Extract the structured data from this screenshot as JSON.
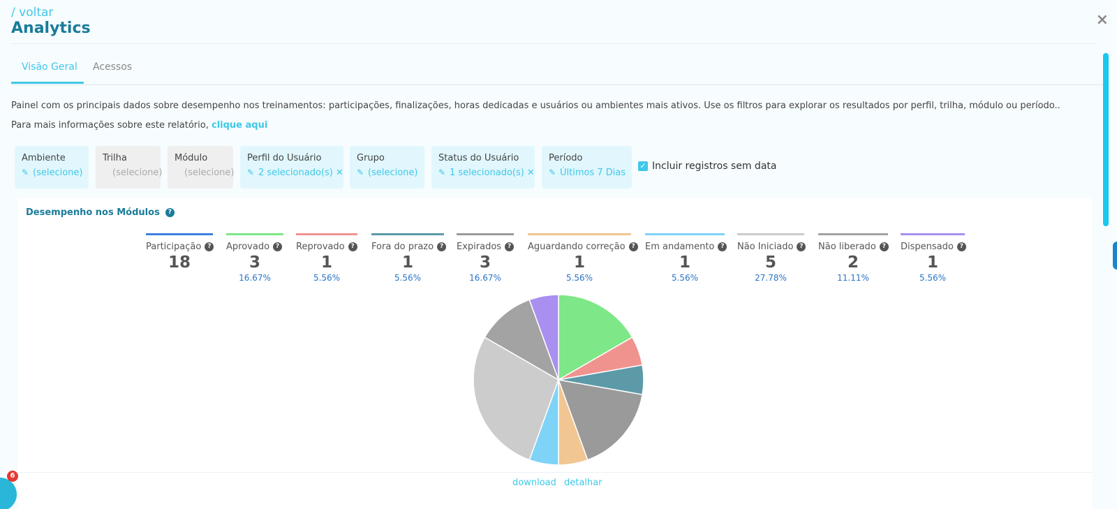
{
  "header": {
    "back_label": "/ voltar",
    "title": "Analytics",
    "close_label": "×"
  },
  "tabs": [
    {
      "label": "Visão Geral",
      "active": true
    },
    {
      "label": "Acessos",
      "active": false
    }
  ],
  "description": "Painel com os principais dados sobre desempenho nos treinamentos: participações, finalizações, horas dedicadas e usuários ou ambientes mais ativos. Use os filtros para explorar os resultados por perfil, trilha, módulo ou período..",
  "info": {
    "text": "Para mais informações sobre este relatório, ",
    "link": "clique aqui"
  },
  "filters": [
    {
      "label": "Ambiente",
      "value": "(selecione)",
      "enabled": true,
      "clearable": false
    },
    {
      "label": "Trilha",
      "value": "(selecione)",
      "enabled": false,
      "clearable": false
    },
    {
      "label": "Módulo",
      "value": "(selecione)",
      "enabled": false,
      "clearable": false
    },
    {
      "label": "Perfil do Usuário",
      "value": "2 selecionado(s)",
      "enabled": true,
      "clearable": true
    },
    {
      "label": "Grupo",
      "value": "(selecione)",
      "enabled": true,
      "clearable": false
    },
    {
      "label": "Status do Usuário",
      "value": "1 selecionado(s)",
      "enabled": true,
      "clearable": true
    },
    {
      "label": "Período",
      "value": "Últimos 7 Dias",
      "enabled": true,
      "clearable": false
    }
  ],
  "include_checkbox": {
    "label": "Incluir registros sem data",
    "checked": true
  },
  "panel": {
    "title": "Desempenho nos Módulos",
    "download_label": "download",
    "detail_label": "detalhar"
  },
  "metrics": [
    {
      "label": "Participação",
      "value": "18",
      "percent": "",
      "color": "#3d7fe0"
    },
    {
      "label": "Aprovado",
      "value": "3",
      "percent": "16.67%",
      "color": "#7ee787"
    },
    {
      "label": "Reprovado",
      "value": "1",
      "percent": "5.56%",
      "color": "#f0938f"
    },
    {
      "label": "Fora do prazo",
      "value": "1",
      "percent": "5.56%",
      "color": "#5d9aa8"
    },
    {
      "label": "Expirados",
      "value": "3",
      "percent": "16.67%",
      "color": "#9a9a9a"
    },
    {
      "label": "Aguardando correção",
      "value": "1",
      "percent": "5.56%",
      "color": "#f1c693"
    },
    {
      "label": "Em andamento",
      "value": "1",
      "percent": "5.56%",
      "color": "#7fd3f7"
    },
    {
      "label": "Não Iniciado",
      "value": "5",
      "percent": "27.78%",
      "color": "#cccccc"
    },
    {
      "label": "Não liberado",
      "value": "2",
      "percent": "11.11%",
      "color": "#a3a3a3"
    },
    {
      "label": "Dispensado",
      "value": "1",
      "percent": "5.56%",
      "color": "#a98ff0"
    }
  ],
  "chart_data": {
    "type": "pie",
    "categories": [
      "Aprovado",
      "Reprovado",
      "Fora do prazo",
      "Expirados",
      "Aguardando correção",
      "Em andamento",
      "Não Iniciado",
      "Não liberado",
      "Dispensado"
    ],
    "values": [
      3,
      1,
      1,
      3,
      1,
      1,
      5,
      2,
      1
    ],
    "colors": [
      "#7ee787",
      "#f0938f",
      "#5d9aa8",
      "#9a9a9a",
      "#f1c693",
      "#7fd3f7",
      "#cccccc",
      "#a3a3a3",
      "#a98ff0"
    ]
  },
  "chat_widget": {
    "badge_count": "6"
  }
}
